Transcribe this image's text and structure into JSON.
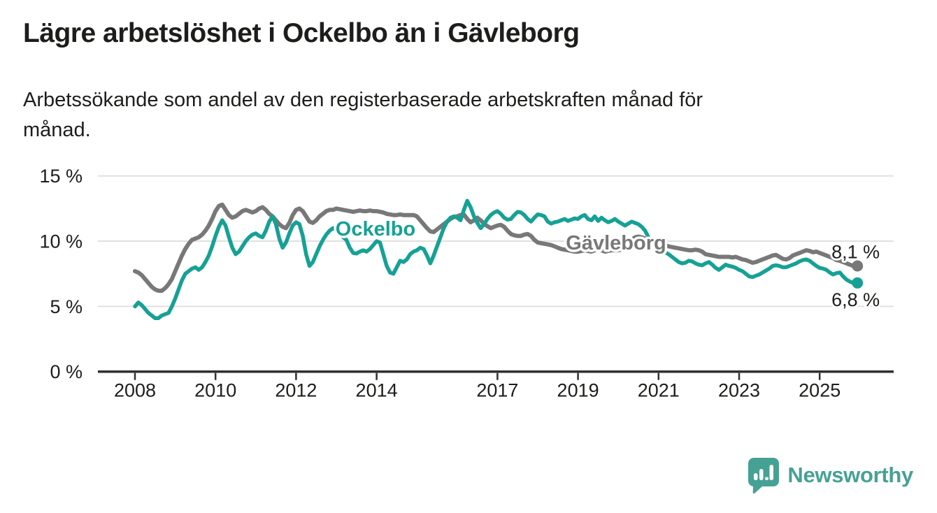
{
  "header": {
    "title": "Lägre arbetslöshet i Ockelbo än i Gävleborg",
    "subtitle_lines": [
      "Arbetssökande som andel av den registerbaserade arbetskraften månad för",
      "månad."
    ]
  },
  "footer": {
    "brand": "Newsworthy",
    "brand_color": "#46a195"
  },
  "chart_data": {
    "type": "line",
    "title": "Lägre arbetslöshet i Ockelbo än i Gävleborg",
    "xlabel": "",
    "ylabel": "",
    "ylim": [
      0,
      15
    ],
    "grid": "horizontal",
    "legend_position": "inline-labels",
    "x_start_year": 2008,
    "points_per_year": 12,
    "x_ticks": [
      {
        "year": 2008,
        "label": "2008"
      },
      {
        "year": 2010,
        "label": "2010"
      },
      {
        "year": 2012,
        "label": "2012"
      },
      {
        "year": 2014,
        "label": "2014"
      },
      {
        "year": 2017,
        "label": "2017"
      },
      {
        "year": 2019,
        "label": "2019"
      },
      {
        "year": 2021,
        "label": "2021"
      },
      {
        "year": 2023,
        "label": "2023"
      },
      {
        "year": 2025,
        "label": "2025"
      }
    ],
    "y_ticks": [
      {
        "value": 15,
        "label": "15 %"
      },
      {
        "value": 10,
        "label": "10 %"
      },
      {
        "value": 5,
        "label": "5 %"
      },
      {
        "value": 0,
        "label": "0 %"
      }
    ],
    "annotations": [
      {
        "text": "Ockelbo",
        "x": 537,
        "y": 337,
        "color": "#16a195"
      },
      {
        "text": "Gävleborg",
        "x": 881,
        "y": 357,
        "color": "#787878"
      }
    ],
    "series": [
      {
        "name": "Gävleborg",
        "color": "#787878",
        "stroke_width": 6,
        "end_label": "8,1 %",
        "end_label_dy": -11,
        "end_value": 8.1,
        "values": [
          7.7,
          7.6,
          7.4,
          7.1,
          6.8,
          6.5,
          6.3,
          6.2,
          6.2,
          6.4,
          6.7,
          7.1,
          7.7,
          8.3,
          8.9,
          9.4,
          9.8,
          10.1,
          10.2,
          10.3,
          10.5,
          10.8,
          11.2,
          11.7,
          12.3,
          12.7,
          12.8,
          12.4,
          12.0,
          11.8,
          11.9,
          12.1,
          12.3,
          12.4,
          12.3,
          12.2,
          12.3,
          12.5,
          12.6,
          12.4,
          12.1,
          11.9,
          11.6,
          11.3,
          11.1,
          11.0,
          11.4,
          12.0,
          12.4,
          12.5,
          12.3,
          11.9,
          11.5,
          11.4,
          11.6,
          11.9,
          12.1,
          12.3,
          12.4,
          12.4,
          12.5,
          12.45,
          12.4,
          12.35,
          12.3,
          12.25,
          12.3,
          12.35,
          12.3,
          12.3,
          12.35,
          12.3,
          12.3,
          12.25,
          12.2,
          12.1,
          12.05,
          12.0,
          12.0,
          12.05,
          12.0,
          12.0,
          12.0,
          12.0,
          11.9,
          11.6,
          11.3,
          11.0,
          10.75,
          10.7,
          10.9,
          11.1,
          11.3,
          11.5,
          11.7,
          11.85,
          11.9,
          12.0,
          12.05,
          11.7,
          11.45,
          11.6,
          11.8,
          11.6,
          11.35,
          11.15,
          11.0,
          11.1,
          11.2,
          11.25,
          11.1,
          10.8,
          10.55,
          10.45,
          10.4,
          10.4,
          10.5,
          10.55,
          10.4,
          10.1,
          9.9,
          9.85,
          9.8,
          9.75,
          9.7,
          9.6,
          9.5,
          9.4,
          9.35,
          9.3,
          9.25,
          9.2,
          9.2,
          9.25,
          9.3,
          9.25,
          9.2,
          9.3,
          9.35,
          9.3,
          9.2,
          9.25,
          9.3,
          9.3,
          9.3,
          9.35,
          9.45,
          9.7,
          10.1,
          10.3,
          10.35,
          10.3,
          10.2,
          10.15,
          10.05,
          9.9,
          9.8,
          9.75,
          9.7,
          9.6,
          9.55,
          9.5,
          9.45,
          9.4,
          9.35,
          9.3,
          9.3,
          9.35,
          9.3,
          9.2,
          9.0,
          8.95,
          8.9,
          8.85,
          8.8,
          8.8,
          8.8,
          8.8,
          8.75,
          8.8,
          8.7,
          8.6,
          8.55,
          8.45,
          8.35,
          8.4,
          8.5,
          8.6,
          8.7,
          8.8,
          8.9,
          8.95,
          8.8,
          8.65,
          8.6,
          8.7,
          8.9,
          9.0,
          9.1,
          9.2,
          9.3,
          9.25,
          9.15,
          9.2,
          9.1,
          9.0,
          8.9,
          8.8,
          8.7,
          8.55,
          8.5,
          8.4,
          8.3,
          8.2,
          8.1
        ]
      },
      {
        "name": "Ockelbo",
        "color": "#16a195",
        "stroke_width": 5.5,
        "end_label": "6,8 %",
        "end_label_dy": 33,
        "end_value": 6.8,
        "values": [
          5.0,
          5.3,
          5.1,
          4.8,
          4.5,
          4.3,
          4.1,
          4.1,
          4.3,
          4.4,
          4.5,
          5.0,
          5.6,
          6.3,
          7.0,
          7.5,
          7.7,
          7.9,
          8.0,
          7.8,
          8.0,
          8.4,
          8.9,
          9.6,
          10.4,
          11.1,
          11.6,
          11.2,
          10.3,
          9.5,
          9.0,
          9.2,
          9.6,
          10.0,
          10.3,
          10.5,
          10.6,
          10.4,
          10.3,
          10.8,
          11.5,
          11.9,
          11.3,
          10.2,
          9.5,
          9.9,
          10.6,
          11.2,
          11.45,
          11.3,
          10.4,
          9.0,
          8.1,
          8.4,
          9.0,
          9.6,
          10.1,
          10.5,
          10.8,
          11.0,
          10.9,
          10.6,
          10.3,
          10.1,
          9.5,
          9.1,
          9.05,
          9.2,
          9.3,
          9.2,
          9.4,
          9.7,
          10.0,
          9.9,
          9.0,
          8.1,
          7.6,
          7.5,
          8.0,
          8.5,
          8.4,
          8.6,
          9.0,
          9.2,
          9.3,
          9.5,
          9.4,
          8.9,
          8.3,
          8.9,
          9.6,
          10.3,
          11.0,
          11.5,
          11.8,
          11.9,
          11.8,
          11.6,
          12.4,
          13.1,
          12.6,
          11.9,
          11.4,
          11.0,
          11.3,
          11.7,
          12.0,
          12.2,
          12.3,
          12.1,
          11.8,
          11.65,
          11.7,
          12.0,
          12.25,
          12.2,
          12.0,
          11.7,
          11.5,
          11.8,
          12.05,
          12.0,
          11.9,
          11.5,
          11.35,
          11.45,
          11.5,
          11.6,
          11.7,
          11.55,
          11.65,
          11.75,
          11.7,
          11.9,
          12.0,
          11.7,
          11.6,
          11.9,
          11.55,
          11.8,
          11.6,
          11.45,
          11.55,
          11.7,
          11.5,
          11.35,
          11.2,
          11.35,
          11.5,
          11.4,
          11.3,
          11.1,
          10.8,
          10.3,
          9.9,
          9.75,
          9.6,
          9.4,
          9.15,
          9.0,
          8.8,
          8.6,
          8.4,
          8.3,
          8.35,
          8.5,
          8.45,
          8.3,
          8.2,
          8.15,
          8.3,
          8.4,
          8.2,
          7.95,
          7.8,
          8.0,
          8.2,
          8.1,
          8.05,
          7.95,
          7.8,
          7.7,
          7.5,
          7.3,
          7.25,
          7.35,
          7.45,
          7.6,
          7.75,
          7.9,
          8.1,
          8.15,
          8.1,
          8.0,
          8.0,
          8.1,
          8.2,
          8.3,
          8.45,
          8.55,
          8.6,
          8.5,
          8.3,
          8.1,
          7.95,
          7.9,
          7.8,
          7.6,
          7.45,
          7.55,
          7.6,
          7.3,
          7.05,
          6.9,
          6.8
        ]
      }
    ]
  }
}
